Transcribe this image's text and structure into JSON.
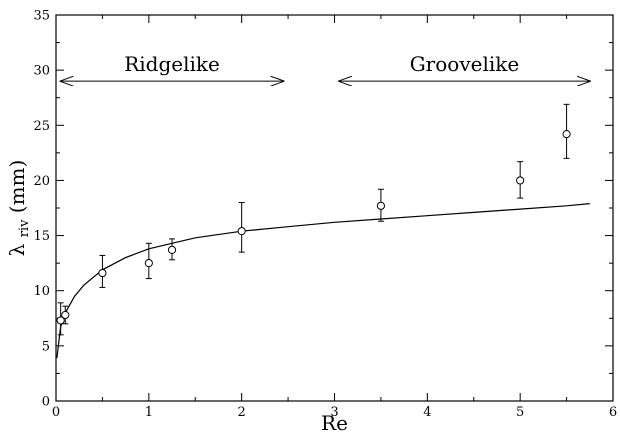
{
  "chart_data": {
    "type": "scatter",
    "title": "",
    "xlabel": "Re",
    "ylabel": "λriv (mm)",
    "ylabel_main": "λ",
    "ylabel_sub": "riv",
    "ylabel_unit": " (mm)",
    "xlim": [
      0,
      6
    ],
    "ylim": [
      0,
      35
    ],
    "xticks": [
      "0",
      "1",
      "2",
      "3",
      "4",
      "5",
      "6"
    ],
    "yticks": [
      "0",
      "5",
      "10",
      "15",
      "20",
      "25",
      "30",
      "35"
    ],
    "grid": false,
    "points": [
      {
        "x": 0.05,
        "y": 7.3,
        "err_low": 6.0,
        "err_high": 8.9
      },
      {
        "x": 0.1,
        "y": 7.8,
        "err_low": 7.0,
        "err_high": 8.6
      },
      {
        "x": 0.5,
        "y": 11.6,
        "err_low": 10.3,
        "err_high": 13.2
      },
      {
        "x": 1.0,
        "y": 12.5,
        "err_low": 11.1,
        "err_high": 14.3
      },
      {
        "x": 1.25,
        "y": 13.7,
        "err_low": 12.8,
        "err_high": 14.7
      },
      {
        "x": 2.0,
        "y": 15.4,
        "err_low": 13.5,
        "err_high": 18.0
      },
      {
        "x": 3.5,
        "y": 17.7,
        "err_low": 16.3,
        "err_high": 19.2
      },
      {
        "x": 5.0,
        "y": 20.0,
        "err_low": 18.4,
        "err_high": 21.7
      },
      {
        "x": 5.5,
        "y": 24.2,
        "err_low": 22.0,
        "err_high": 26.9
      }
    ],
    "fit_curve": {
      "x": [
        0.01,
        0.05,
        0.1,
        0.2,
        0.3,
        0.5,
        0.75,
        1.0,
        1.5,
        2.0,
        2.5,
        3.0,
        3.5,
        4.0,
        4.5,
        5.0,
        5.5,
        5.75
      ],
      "y": [
        3.9,
        6.7,
        8.0,
        9.5,
        10.5,
        11.9,
        13.0,
        13.8,
        14.8,
        15.4,
        15.8,
        16.2,
        16.5,
        16.8,
        17.1,
        17.4,
        17.7,
        17.9
      ]
    },
    "annotations": [
      {
        "label": "Ridgelike",
        "x_range": [
          0.05,
          2.45
        ],
        "y": 29
      },
      {
        "label": "Groovelike",
        "x_range": [
          3.05,
          5.75
        ],
        "y": 29
      }
    ]
  }
}
